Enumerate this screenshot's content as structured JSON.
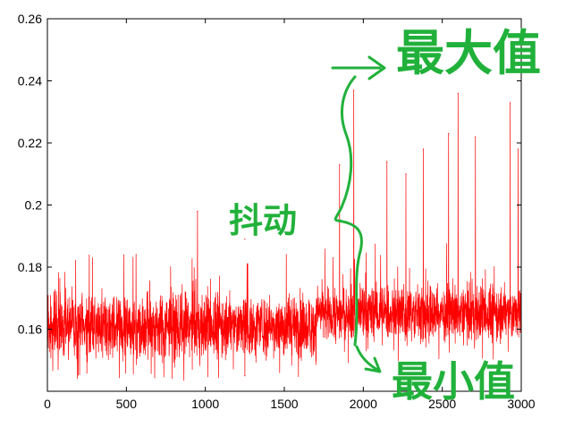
{
  "chart_data": {
    "type": "line",
    "title": "",
    "xlabel": "",
    "ylabel": "",
    "xlim": [
      0,
      3000
    ],
    "ylim": [
      0.14,
      0.26
    ],
    "x_ticks": [
      0,
      500,
      1000,
      1500,
      2000,
      2500,
      3000
    ],
    "x_tick_labels": [
      "0",
      "500",
      "1000",
      "1500",
      "2000",
      "2500",
      "3000"
    ],
    "y_ticks": [
      0.16,
      0.18,
      0.2,
      0.22,
      0.24,
      0.26
    ],
    "y_tick_labels": [
      "0.16",
      "0.18",
      "0.2",
      "0.22",
      "0.24",
      "0.26"
    ],
    "grid": false,
    "legend": "none",
    "series": [
      {
        "color": "#ff0000",
        "x_range": [
          0,
          3000
        ],
        "n_points": 3000,
        "segments": [
          {
            "x": [
              0,
              1700
            ],
            "typical_min": 0.147,
            "typical_max": 0.173,
            "mean": 0.161
          },
          {
            "x": [
              1700,
              3000
            ],
            "typical_min": 0.153,
            "typical_max": 0.176,
            "mean": 0.165
          }
        ],
        "peaks": [
          {
            "x": 950,
            "y": 0.198
          },
          {
            "x": 1250,
            "y": 0.189
          },
          {
            "x": 1850,
            "y": 0.213
          },
          {
            "x": 1940,
            "y": 0.237
          },
          {
            "x": 2150,
            "y": 0.214
          },
          {
            "x": 2270,
            "y": 0.21
          },
          {
            "x": 2380,
            "y": 0.218
          },
          {
            "x": 2540,
            "y": 0.223
          },
          {
            "x": 2600,
            "y": 0.236
          },
          {
            "x": 2710,
            "y": 0.222
          },
          {
            "x": 2930,
            "y": 0.233
          },
          {
            "x": 2980,
            "y": 0.218
          }
        ],
        "troughs": [
          {
            "x": 250,
            "y": 0.146
          },
          {
            "x": 1250,
            "y": 0.145
          }
        ]
      }
    ],
    "annotations": [
      {
        "text": "最大值",
        "color": "#21b13b"
      },
      {
        "text": "抖动",
        "color": "#21b13b"
      },
      {
        "text": "最小值",
        "color": "#21b13b"
      }
    ]
  }
}
